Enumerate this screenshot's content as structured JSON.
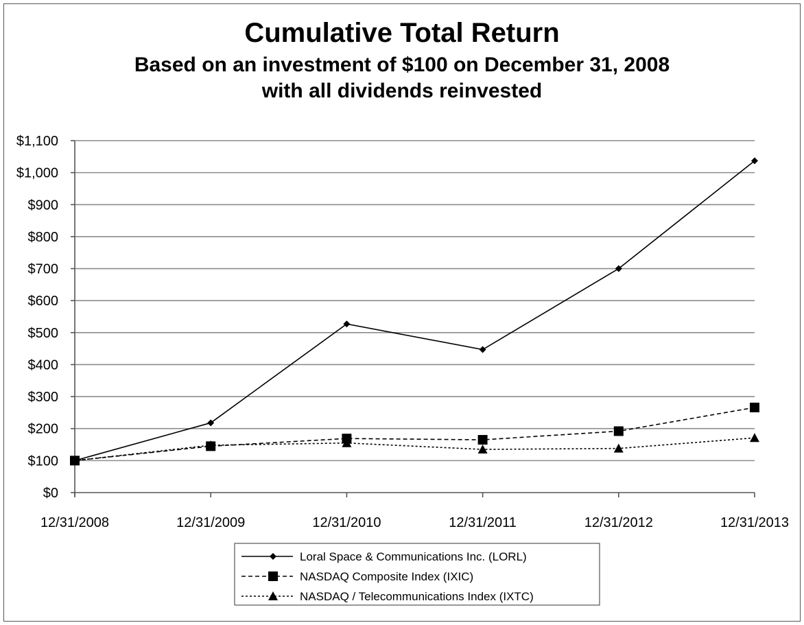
{
  "chart_data": {
    "type": "line",
    "title": "Cumulative Total Return",
    "subtitle_lines": [
      "Based on an investment of $100 on December 31, 2008",
      "with all dividends reinvested"
    ],
    "xlabel": "",
    "ylabel": "",
    "categories": [
      "12/31/2008",
      "12/31/2009",
      "12/31/2010",
      "12/31/2011",
      "12/31/2012",
      "12/31/2013"
    ],
    "ylim": [
      0,
      1100
    ],
    "y_ticks": [
      0,
      100,
      200,
      300,
      400,
      500,
      600,
      700,
      800,
      900,
      1000,
      1100
    ],
    "y_tick_labels": [
      "$0",
      "$100",
      "$200",
      "$300",
      "$400",
      "$500",
      "$600",
      "$700",
      "$800",
      "$900",
      "$1,000",
      "$1,100"
    ],
    "grid": "horizontal",
    "legend_position": "bottom",
    "series": [
      {
        "name": "Loral Space & Communications Inc. (LORL)",
        "values": [
          100,
          218,
          527,
          447,
          700,
          1037
        ],
        "marker": "diamond",
        "line_style": "solid"
      },
      {
        "name": "NASDAQ Composite Index (IXIC)",
        "values": [
          100,
          145,
          169,
          165,
          192,
          266
        ],
        "marker": "square",
        "line_style": "dashed"
      },
      {
        "name": "NASDAQ / Telecommunications Index (IXTC)",
        "values": [
          100,
          148,
          155,
          135,
          138,
          171
        ],
        "marker": "triangle",
        "line_style": "dotted"
      }
    ],
    "colors": {
      "series": "#000000",
      "grid": "#8c8c8c",
      "axis": "#555555",
      "border": "#555555",
      "background": "#ffffff"
    }
  }
}
